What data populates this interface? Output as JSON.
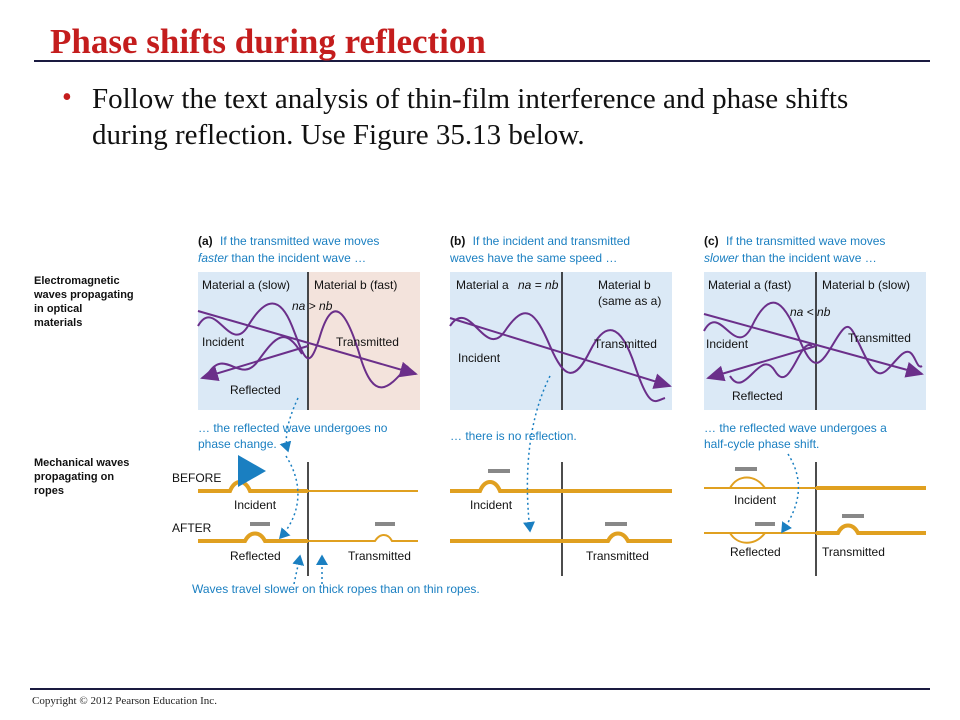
{
  "slide": {
    "title": "Phase shifts during reflection",
    "bullet": "Follow the text analysis of thin-film interference and phase shifts during reflection. Use Figure 35.13 below.",
    "footer": "Copyright © 2012 Pearson Education Inc."
  },
  "figure": {
    "row_labels": {
      "em": [
        "Electromagnetic",
        "waves propagating",
        "in optical",
        "materials"
      ],
      "mech": [
        "Mechanical waves",
        "propagating on",
        "ropes"
      ]
    },
    "panel_a": {
      "letter": "(a)",
      "caption1": "If the transmitted wave moves",
      "caption2_em": "faster",
      "caption2_rest": " than the incident wave …",
      "material_left": "Material a (slow)",
      "material_right": "Material b (fast)",
      "relation": "na > nb",
      "incident": "Incident",
      "reflected": "Reflected",
      "transmitted": "Transmitted",
      "note1": "… the reflected wave undergoes no",
      "note2": "phase change.",
      "before": "BEFORE",
      "after": "AFTER",
      "rope_incident": "Incident",
      "rope_reflected": "Reflected",
      "rope_transmitted": "Transmitted",
      "bottom_note": "Waves travel slower on thick ropes than on thin ropes."
    },
    "panel_b": {
      "letter": "(b)",
      "caption1": "If the incident and transmitted",
      "caption2": "waves have the same speed …",
      "material_left": "Material a",
      "material_right": "Material b",
      "material_right2": "(same as a)",
      "relation": "na = nb",
      "incident": "Incident",
      "transmitted": "Transmitted",
      "note1": "… there is no reflection.",
      "rope_incident": "Incident",
      "rope_transmitted": "Transmitted"
    },
    "panel_c": {
      "letter": "(c)",
      "caption1": "If the transmitted wave moves",
      "caption2_em": "slower",
      "caption2_rest": " than the incident wave …",
      "material_left": "Material a (fast)",
      "material_right": "Material b (slow)",
      "relation": "na < nb",
      "incident": "Incident",
      "reflected": "Reflected",
      "transmitted": "Transmitted",
      "note1": "… the reflected wave undergoes a",
      "note2": "half-cycle phase shift.",
      "rope_incident": "Incident",
      "rope_reflected": "Reflected",
      "rope_transmitted": "Transmitted"
    },
    "colors": {
      "panel_blue": "#dbe9f6",
      "panel_pink": "#f3e3dc",
      "wave_purple": "#6b2f8a",
      "caption_blue": "#1a7fc1",
      "rope_gold": "#e0a020",
      "title_red": "#c41d1d"
    }
  }
}
